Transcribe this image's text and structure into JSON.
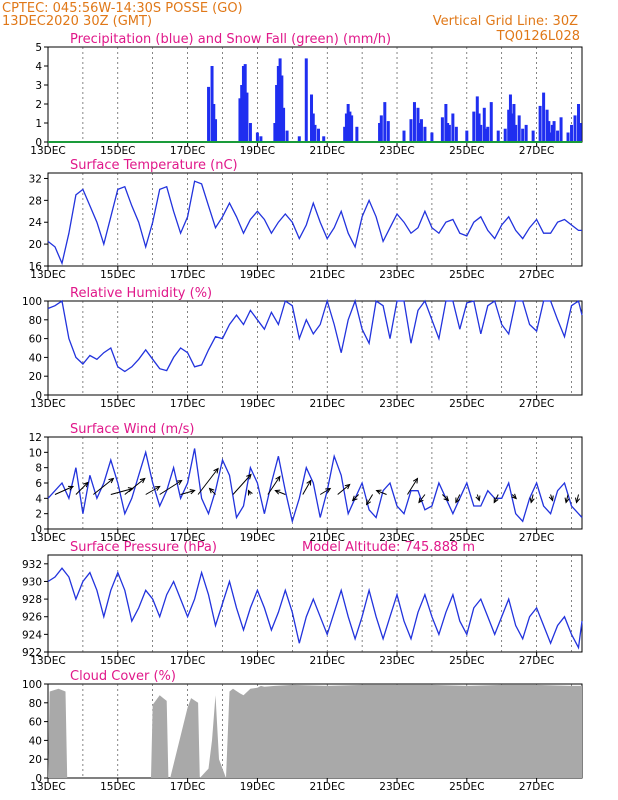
{
  "header": {
    "line1": "CPTEC:  045:56W-14:30S  POSSE (GO)",
    "line2": "13DEC2020 30Z (GMT)",
    "grid_note": "Vertical Grid Line: 30Z",
    "model_id": "TQ0126L028"
  },
  "colors": {
    "header": "#e07818",
    "title": "#e0188a",
    "line": "#2233dd",
    "precip": "#1f2ef0",
    "snow": "#1a9b3a",
    "cloud": "#a9a9a9",
    "wind_arrow": "#000000"
  },
  "x_axis": {
    "ticks": [
      "13DEC",
      "15DEC",
      "17DEC",
      "19DEC",
      "21DEC",
      "23DEC",
      "25DEC",
      "27DEC"
    ],
    "range_days": [
      0,
      15.3
    ],
    "vertical_grid": "30Z daily",
    "grid_style": "dashed"
  },
  "chart_data": [
    {
      "type": "bar",
      "title": "Precipitation (blue) and Snow Fall (green) (mm/h)",
      "ylim": [
        0,
        5
      ],
      "yticks": [
        "0",
        "1",
        "2",
        "3",
        "4",
        "5"
      ],
      "series": [
        {
          "name": "Precipitation",
          "x_days": [
            4.6,
            4.7,
            4.75,
            4.8,
            5.5,
            5.55,
            5.6,
            5.65,
            5.7,
            5.8,
            6.0,
            6.1,
            6.5,
            6.55,
            6.6,
            6.65,
            6.7,
            6.75,
            6.85,
            7.2,
            7.4,
            7.55,
            7.6,
            7.65,
            7.75,
            7.9,
            8.5,
            8.55,
            8.6,
            8.65,
            8.7,
            8.85,
            9.5,
            9.55,
            9.65,
            9.75,
            10.2,
            10.4,
            10.5,
            10.6,
            10.65,
            10.7,
            10.8,
            11.0,
            11.3,
            11.4,
            11.45,
            11.5,
            11.6,
            11.7,
            12.0,
            12.2,
            12.3,
            12.35,
            12.4,
            12.5,
            12.55,
            12.6,
            12.7,
            12.9,
            13.1,
            13.2,
            13.25,
            13.3,
            13.35,
            13.4,
            13.5,
            13.6,
            13.7,
            13.9,
            14.1,
            14.2,
            14.3,
            14.35,
            14.4,
            14.45,
            14.5,
            14.6,
            14.7,
            14.9,
            15.0,
            15.1,
            15.2,
            15.25
          ],
          "values": [
            2.9,
            4.0,
            2.0,
            1.2,
            2.3,
            3.0,
            4.0,
            4.1,
            2.6,
            1.0,
            0.5,
            0.3,
            1.0,
            3.0,
            4.0,
            4.4,
            3.5,
            1.8,
            0.6,
            0.3,
            4.4,
            2.5,
            1.5,
            0.9,
            0.7,
            0.3,
            0.8,
            1.5,
            2.0,
            1.6,
            1.4,
            0.8,
            1.0,
            1.4,
            2.1,
            1.1,
            0.6,
            1.2,
            2.1,
            1.8,
            1.0,
            1.2,
            0.8,
            0.5,
            1.3,
            2.0,
            1.0,
            0.9,
            1.5,
            0.8,
            0.6,
            1.6,
            2.4,
            1.5,
            0.9,
            1.8,
            0.7,
            0.8,
            2.1,
            0.6,
            0.7,
            1.7,
            2.5,
            1.5,
            2.0,
            0.9,
            1.4,
            0.7,
            0.9,
            0.6,
            1.9,
            2.6,
            1.7,
            1.1,
            0.5,
            0.9,
            1.1,
            0.6,
            1.3,
            0.5,
            0.9,
            1.4,
            2.0,
            1.0
          ]
        },
        {
          "name": "Snow Fall",
          "x_days": [
            0,
            15.3
          ],
          "values": [
            0,
            0
          ]
        }
      ]
    },
    {
      "type": "line",
      "title": "Surface Temperature (nC)",
      "ylim": [
        16,
        33
      ],
      "yticks": [
        "16",
        "20",
        "24",
        "28",
        "32"
      ],
      "x_days": [
        0,
        0.2,
        0.4,
        0.6,
        0.8,
        1.0,
        1.2,
        1.4,
        1.6,
        1.8,
        2.0,
        2.2,
        2.4,
        2.6,
        2.8,
        3.0,
        3.2,
        3.4,
        3.6,
        3.8,
        4.0,
        4.2,
        4.4,
        4.6,
        4.8,
        5.0,
        5.2,
        5.4,
        5.6,
        5.8,
        6.0,
        6.2,
        6.4,
        6.6,
        6.8,
        7.0,
        7.2,
        7.4,
        7.6,
        7.8,
        8.0,
        8.2,
        8.4,
        8.6,
        8.8,
        9.0,
        9.2,
        9.4,
        9.6,
        9.8,
        10.0,
        10.2,
        10.4,
        10.6,
        10.8,
        11.0,
        11.2,
        11.4,
        11.6,
        11.8,
        12.0,
        12.2,
        12.4,
        12.6,
        12.8,
        13.0,
        13.2,
        13.4,
        13.6,
        13.8,
        14.0,
        14.2,
        14.4,
        14.6,
        14.8,
        15.0,
        15.2,
        15.3
      ],
      "values": [
        20.5,
        19.5,
        16.5,
        22,
        29,
        30,
        27,
        24,
        20,
        25,
        30,
        30.5,
        27,
        24,
        19.5,
        24,
        30,
        30.5,
        26,
        22,
        25,
        31.5,
        31,
        27,
        23,
        25,
        27.5,
        25,
        22,
        24.5,
        26,
        24.5,
        22,
        24,
        25.5,
        24,
        21,
        23.5,
        27.5,
        24,
        21,
        23,
        26,
        22,
        19.5,
        25,
        28,
        25,
        20.5,
        23,
        25.5,
        24,
        22,
        23,
        26,
        23,
        22,
        24,
        24.5,
        22,
        21.5,
        24,
        25,
        22.5,
        21,
        23.5,
        25,
        22.5,
        21,
        23,
        24.5,
        22,
        22,
        24,
        24.5,
        23.5,
        22.5,
        22.5
      ]
    },
    {
      "type": "line",
      "title": "Relative Humidity (%)",
      "ylim": [
        0,
        100
      ],
      "yticks": [
        "0",
        "20",
        "40",
        "60",
        "80",
        "100"
      ],
      "x_days": [
        0,
        0.2,
        0.4,
        0.6,
        0.8,
        1.0,
        1.2,
        1.4,
        1.6,
        1.8,
        2.0,
        2.2,
        2.4,
        2.6,
        2.8,
        3.0,
        3.2,
        3.4,
        3.6,
        3.8,
        4.0,
        4.2,
        4.4,
        4.6,
        4.8,
        5.0,
        5.2,
        5.4,
        5.6,
        5.8,
        6.0,
        6.2,
        6.4,
        6.6,
        6.8,
        7.0,
        7.2,
        7.4,
        7.6,
        7.8,
        8.0,
        8.2,
        8.4,
        8.6,
        8.8,
        9.0,
        9.2,
        9.4,
        9.6,
        9.8,
        10.0,
        10.2,
        10.4,
        10.6,
        10.8,
        11.0,
        11.2,
        11.4,
        11.6,
        11.8,
        12.0,
        12.2,
        12.4,
        12.6,
        12.8,
        13.0,
        13.2,
        13.4,
        13.6,
        13.8,
        14.0,
        14.2,
        14.4,
        14.6,
        14.8,
        15.0,
        15.2,
        15.3
      ],
      "values": [
        92,
        95,
        100,
        60,
        40,
        33,
        42,
        38,
        45,
        50,
        30,
        25,
        30,
        38,
        48,
        38,
        28,
        26,
        40,
        50,
        45,
        30,
        32,
        48,
        62,
        60,
        75,
        85,
        75,
        90,
        80,
        70,
        88,
        75,
        100,
        95,
        60,
        80,
        65,
        75,
        100,
        75,
        45,
        80,
        100,
        70,
        55,
        100,
        95,
        60,
        100,
        100,
        55,
        90,
        100,
        80,
        60,
        100,
        100,
        70,
        98,
        100,
        65,
        95,
        100,
        75,
        65,
        100,
        100,
        75,
        68,
        100,
        100,
        80,
        62,
        95,
        100,
        85
      ]
    },
    {
      "type": "line",
      "title": "Surface Wind (m/s)",
      "ylim": [
        0,
        12
      ],
      "yticks": [
        "0",
        "2",
        "4",
        "6",
        "8",
        "10",
        "12"
      ],
      "x_days": [
        0,
        0.2,
        0.4,
        0.6,
        0.8,
        1.0,
        1.2,
        1.4,
        1.6,
        1.8,
        2.0,
        2.2,
        2.4,
        2.6,
        2.8,
        3.0,
        3.2,
        3.4,
        3.6,
        3.8,
        4.0,
        4.2,
        4.4,
        4.6,
        4.8,
        5.0,
        5.2,
        5.4,
        5.6,
        5.8,
        6.0,
        6.2,
        6.4,
        6.6,
        6.8,
        7.0,
        7.2,
        7.4,
        7.6,
        7.8,
        8.0,
        8.2,
        8.4,
        8.6,
        8.8,
        9.0,
        9.2,
        9.4,
        9.6,
        9.8,
        10.0,
        10.2,
        10.4,
        10.6,
        10.8,
        11.0,
        11.2,
        11.4,
        11.6,
        11.8,
        12.0,
        12.2,
        12.4,
        12.6,
        12.8,
        13.0,
        13.2,
        13.4,
        13.6,
        13.8,
        14.0,
        14.2,
        14.4,
        14.6,
        14.8,
        15.0,
        15.2,
        15.3
      ],
      "values": [
        4,
        5,
        6,
        4,
        8,
        2,
        7,
        4,
        6,
        9,
        6,
        2,
        4,
        7,
        10,
        6,
        3,
        5,
        8,
        4,
        6,
        10.5,
        4,
        2,
        5,
        9,
        7,
        1.5,
        3,
        8,
        6,
        2,
        6,
        9.5,
        5,
        1,
        4,
        8,
        6,
        1.5,
        5,
        9.5,
        7,
        2,
        4,
        6,
        2.5,
        1.5,
        5,
        6,
        3,
        2,
        5,
        5,
        2.5,
        3,
        6,
        4,
        2,
        4,
        6,
        3,
        3,
        5,
        4,
        4,
        6,
        2,
        1,
        4,
        6,
        3,
        2,
        5,
        6,
        3,
        2,
        1.5
      ],
      "arrows": {
        "x_days": [
          0.2,
          0.8,
          1.3,
          1.8,
          2.2,
          2.8,
          3.2,
          3.8,
          4.3,
          4.8,
          5.3,
          5.8,
          6.3,
          6.8,
          7.3,
          7.8,
          8.3,
          8.9,
          9.3,
          9.7,
          10.3,
          10.8,
          11.3,
          11.8,
          12.3,
          12.9,
          13.3,
          13.9,
          14.4,
          14.9,
          15.2
        ],
        "u": [
          4.5,
          3.0,
          5.0,
          5.5,
          5.0,
          3.5,
          5.5,
          3.5,
          5.0,
          -1.5,
          4.5,
          -0.5,
          3.0,
          -2.5,
          2.0,
          2.5,
          3.0,
          -1.5,
          -1.5,
          -2.5,
          2.5,
          -1.5,
          1.5,
          -1.0,
          0.5,
          -1.0,
          1.0,
          -0.5,
          0.5,
          -0.5,
          -0.5
        ],
        "v": [
          2.0,
          3.0,
          4.0,
          1.5,
          4.0,
          2.0,
          3.5,
          1.0,
          6.5,
          1.5,
          5.0,
          1.0,
          4.5,
          1.0,
          3.5,
          1.5,
          2.5,
          -1.5,
          -2.5,
          1.0,
          4.0,
          -2.0,
          -1.5,
          -2.0,
          -1.5,
          -2.0,
          -1.0,
          -2.0,
          -1.5,
          -2.0,
          -2.0
        ]
      }
    },
    {
      "type": "line",
      "title": "Surface Pressure (hPa)",
      "subtitle": "Model Altitude: 745.888  m",
      "ylim": [
        922,
        933
      ],
      "yticks": [
        "922",
        "924",
        "926",
        "928",
        "930",
        "932"
      ],
      "x_days": [
        0,
        0.2,
        0.4,
        0.6,
        0.8,
        1.0,
        1.2,
        1.4,
        1.6,
        1.8,
        2.0,
        2.2,
        2.4,
        2.6,
        2.8,
        3.0,
        3.2,
        3.4,
        3.6,
        3.8,
        4.0,
        4.2,
        4.4,
        4.6,
        4.8,
        5.0,
        5.2,
        5.4,
        5.6,
        5.8,
        6.0,
        6.2,
        6.4,
        6.6,
        6.8,
        7.0,
        7.2,
        7.4,
        7.6,
        7.8,
        8.0,
        8.2,
        8.4,
        8.6,
        8.8,
        9.0,
        9.2,
        9.4,
        9.6,
        9.8,
        10.0,
        10.2,
        10.4,
        10.6,
        10.8,
        11.0,
        11.2,
        11.4,
        11.6,
        11.8,
        12.0,
        12.2,
        12.4,
        12.6,
        12.8,
        13.0,
        13.2,
        13.4,
        13.6,
        13.8,
        14.0,
        14.2,
        14.4,
        14.6,
        14.8,
        15.0,
        15.2,
        15.3
      ],
      "values": [
        930,
        930.5,
        931.5,
        930.5,
        928,
        930,
        931,
        929,
        926,
        929,
        931,
        929,
        925.5,
        927,
        929,
        928,
        926,
        928.5,
        930,
        928,
        926,
        928,
        931,
        928.5,
        925,
        927.5,
        930,
        927,
        924.5,
        927,
        929,
        927,
        924.5,
        926.5,
        929,
        926.5,
        923,
        926,
        928,
        926,
        924,
        926.5,
        929,
        926,
        923.5,
        926,
        929,
        926,
        923.5,
        926,
        928.5,
        925.5,
        923.5,
        926.5,
        928.5,
        926,
        924,
        926.5,
        928.5,
        925.5,
        924,
        927,
        928,
        926,
        924,
        926,
        928,
        925,
        923.5,
        926,
        927,
        925,
        923,
        925,
        926,
        924,
        922.5,
        925.5
      ]
    },
    {
      "type": "area",
      "title": "Cloud Cover (%)",
      "ylim": [
        0,
        100
      ],
      "yticks": [
        "0",
        "20",
        "40",
        "60",
        "80",
        "100"
      ],
      "x_days": [
        0,
        0.05,
        0.3,
        0.5,
        0.55,
        2.95,
        3.0,
        3.2,
        3.3,
        3.4,
        3.45,
        3.5,
        4.0,
        4.1,
        4.3,
        4.35,
        4.6,
        4.7,
        4.8,
        4.9,
        5.1,
        5.2,
        5.3,
        5.5,
        5.6,
        5.8,
        6.0,
        6.1,
        6.2,
        6.5,
        7.0,
        8.0,
        9.0,
        10.0,
        11.0,
        12.0,
        13.0,
        14.0,
        15.0,
        15.3
      ],
      "values": [
        0,
        92,
        95,
        92,
        0,
        0,
        78,
        88,
        85,
        82,
        0,
        0,
        75,
        85,
        80,
        0,
        10,
        40,
        88,
        20,
        0,
        92,
        95,
        90,
        88,
        95,
        96,
        98,
        97,
        98,
        99,
        98,
        99,
        99,
        99,
        98,
        99,
        99,
        98,
        98
      ]
    }
  ]
}
